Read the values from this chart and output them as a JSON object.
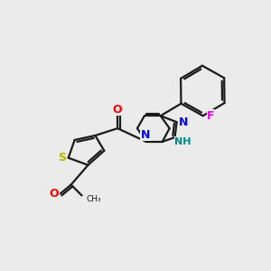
{
  "background_color": "#ebebeb",
  "bond_color": "#1a1a1a",
  "atom_colors": {
    "S": "#b8b800",
    "O": "#ff0000",
    "N": "#0000ff",
    "NH": "#008888",
    "F": "#ee00ee"
  },
  "figsize": [
    3.0,
    3.0
  ],
  "dpi": 100
}
